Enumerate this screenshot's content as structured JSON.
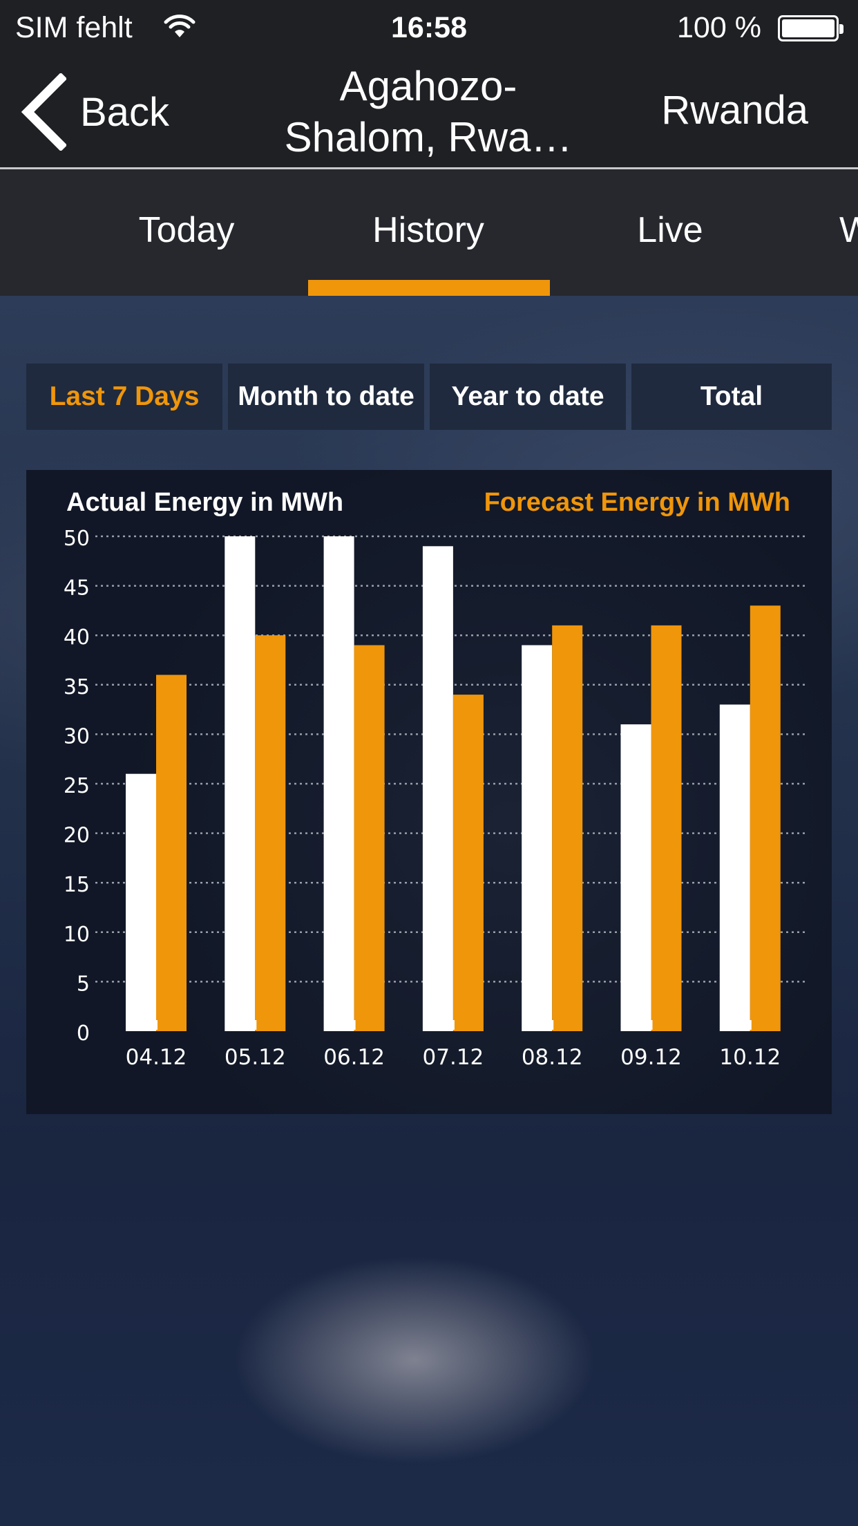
{
  "status_bar": {
    "carrier": "SIM fehlt",
    "time": "16:58",
    "battery": "100 %",
    "wifi_icon": "wifi-icon",
    "battery_icon": "battery-full-icon"
  },
  "nav": {
    "back_label": "Back",
    "back_icon": "chevron-left-icon",
    "title_line1": "Agahozo-",
    "title_line2": "Shalom, Rwa…",
    "right_label": "Rwanda"
  },
  "tabs": [
    {
      "label": "Today",
      "active": false
    },
    {
      "label": "History",
      "active": true
    },
    {
      "label": "Live",
      "active": false
    },
    {
      "label": "W",
      "active": false
    }
  ],
  "periods": [
    {
      "label": "Last 7 Days",
      "active": true
    },
    {
      "label": "Month to date",
      "active": false
    },
    {
      "label": "Year to date",
      "active": false
    },
    {
      "label": "Total",
      "active": false
    }
  ],
  "colors": {
    "accent": "#f0960a",
    "actual": "#ffffff",
    "forecast": "#f0960a"
  },
  "chart_data": {
    "type": "bar",
    "categories": [
      "04.12",
      "05.12",
      "06.12",
      "07.12",
      "08.12",
      "09.12",
      "10.12"
    ],
    "series": [
      {
        "name": "Actual Energy in MWh",
        "values": [
          26,
          50,
          50,
          49,
          39,
          31,
          33
        ]
      },
      {
        "name": "Forecast Energy in MWh",
        "values": [
          36,
          40,
          39,
          34,
          41,
          41,
          43
        ]
      }
    ],
    "ylim": [
      0,
      50
    ],
    "yticks": [
      0,
      5,
      10,
      15,
      20,
      25,
      30,
      35,
      40,
      45,
      50
    ],
    "grid": true,
    "legend": "top"
  }
}
